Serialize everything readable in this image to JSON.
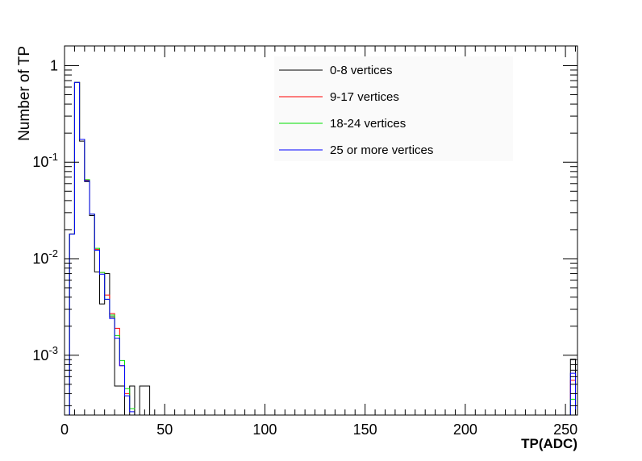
{
  "chart_data": {
    "type": "line",
    "xlabel": "TP(ADC)",
    "ylabel": "Number of TP",
    "xlim": [
      0,
      256
    ],
    "ylim": [
      0.00024,
      1.6
    ],
    "y_scale": "log",
    "grid": false,
    "legend_position": "top-right",
    "x_ticks": [
      0,
      50,
      100,
      150,
      200,
      250
    ],
    "x_tick_labels": [
      "0",
      "50",
      "100",
      "150",
      "200",
      "250"
    ],
    "y_ticks": [
      0.001,
      0.01,
      0.1,
      1
    ],
    "y_tick_labels": [
      {
        "base": "10",
        "exp": "-3"
      },
      {
        "base": "10",
        "exp": "-2"
      },
      {
        "base": "10",
        "exp": "-1"
      },
      {
        "base": "1",
        "exp": ""
      }
    ],
    "bin_width": 2.5,
    "series": [
      {
        "name": "0-8 vertices",
        "color": "#000000",
        "x": [
          2.5,
          5,
          7.5,
          10,
          12.5,
          15,
          17.5,
          20,
          22.5,
          25,
          27.5,
          30,
          32.5,
          35,
          37.5,
          40
        ],
        "y": [
          0.018,
          0.67,
          0.165,
          0.063,
          0.028,
          0.0073,
          0.0034,
          0.007,
          0.0025,
          0.00048,
          0.00048,
          0.00024,
          0.00048,
          0.00024,
          0.00048,
          0.00048
        ],
        "overflow": [
          {
            "x": 252.5,
            "y": 0.00091
          }
        ]
      },
      {
        "name": "9-17 vertices",
        "color": "#ff0000",
        "x": [
          2.5,
          5,
          7.5,
          10,
          12.5,
          15,
          17.5,
          20,
          22.5,
          25,
          27.5,
          30,
          32.5
        ],
        "y": [
          0.018,
          0.67,
          0.172,
          0.065,
          0.029,
          0.0125,
          0.0072,
          0.0042,
          0.0027,
          0.0019,
          0.00078,
          0.0004,
          0.00028
        ],
        "overflow": [
          {
            "x": 252.5,
            "y": 0.00055
          }
        ]
      },
      {
        "name": "18-24 vertices",
        "color": "#00dd00",
        "x": [
          2.5,
          5,
          7.5,
          10,
          12.5,
          15,
          17.5,
          20,
          22.5,
          25,
          27.5,
          30,
          32.5
        ],
        "y": [
          0.018,
          0.67,
          0.172,
          0.066,
          0.029,
          0.0128,
          0.0072,
          0.0038,
          0.0026,
          0.0016,
          0.00088,
          0.00045,
          0.00028
        ],
        "overflow": [
          {
            "x": 252.5,
            "y": 0.00035
          }
        ]
      },
      {
        "name": "25 or more vertices",
        "color": "#0000ff",
        "x": [
          2.5,
          5,
          7.5,
          10,
          12.5,
          15,
          17.5,
          20,
          22.5,
          25,
          27.5,
          30,
          32.5
        ],
        "y": [
          0.018,
          0.67,
          0.172,
          0.064,
          0.029,
          0.0122,
          0.0069,
          0.0038,
          0.0024,
          0.0015,
          0.00078,
          0.00038,
          0.00026
        ],
        "overflow": [
          {
            "x": 252.5,
            "y": 0.00065
          }
        ]
      }
    ]
  }
}
